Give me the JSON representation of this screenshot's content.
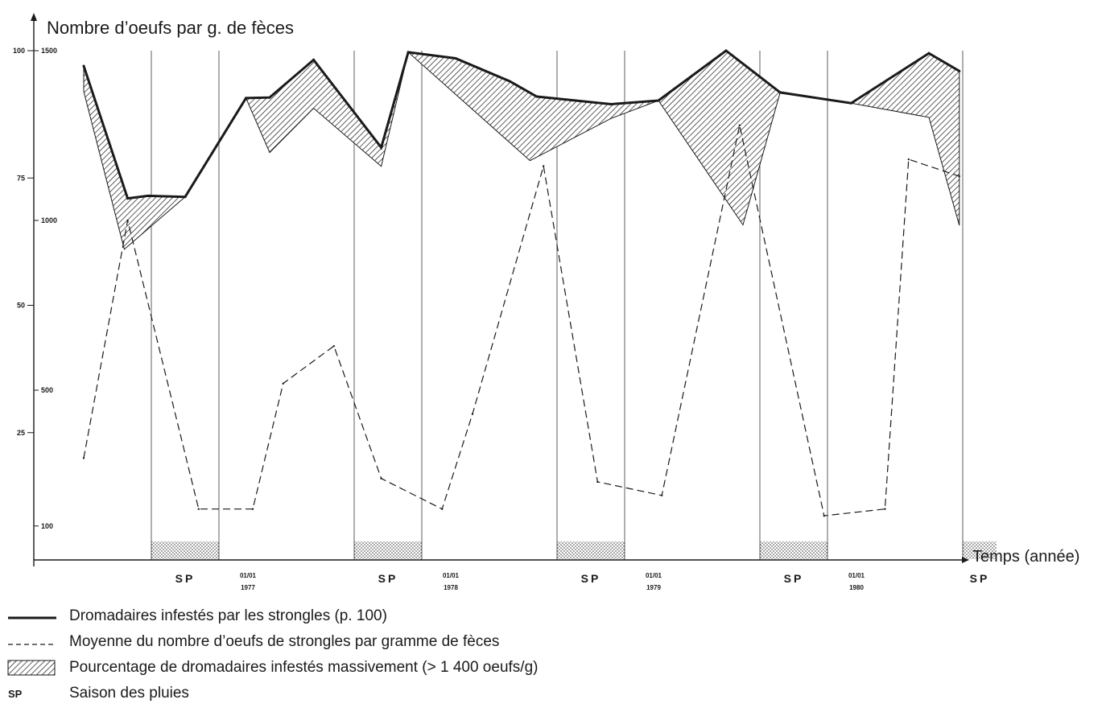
{
  "chart_data": {
    "type": "line",
    "title": "Nombre d’oeufs par g. de fèces",
    "xlabel": "Temps (année)",
    "left_axis": {
      "ticks": [
        100,
        75,
        50,
        25
      ],
      "range": [
        0,
        100
      ]
    },
    "right_axis": {
      "ticks": [
        1500,
        1000,
        500,
        100
      ],
      "range": [
        0,
        1500
      ]
    },
    "x": [
      0.7,
      1.4,
      1.8,
      2.1,
      2.4,
      2.7,
      3.15,
      3.3,
      3.8,
      4.3,
      4.6,
      5.3,
      5.5,
      6.0,
      6.6,
      6.8,
      7.3,
      7.8,
      8.3,
      8.5,
      9.1,
      9.7,
      10.6,
      11.1,
      11.6,
      12.4,
      12.7
    ],
    "series": [
      {
        "name": "Dromadaires infestés par les strongles (p. 100)",
        "style": "solid-thick",
        "x": [
          0,
          0.65,
          0.95,
          1.5,
          2.4,
          2.75,
          3.4,
          4.4,
          4.8,
          5.5,
          6.3,
          6.7,
          7.8,
          8.5,
          9.5,
          10.3,
          11.35,
          12.5,
          12.95
        ],
        "y": [
          97,
          71,
          71.5,
          71.3,
          90.7,
          90.8,
          98.2,
          81,
          99.7,
          98.5,
          94,
          91,
          89.5,
          90.2,
          100,
          91.8,
          89.7,
          99.5,
          96
        ]
      },
      {
        "name": "Moyenne du nombre d’oeufs de strongles par gramme de fèces",
        "style": "dashed",
        "x": [
          0,
          0.65,
          1.7,
          2.5,
          2.95,
          3.7,
          4.4,
          5.3,
          5.75,
          6.8,
          7.6,
          8.55,
          9.7,
          10.95,
          11.85,
          12.2,
          12.95
        ],
        "y": [
          300,
          1000,
          150,
          150,
          520,
          630,
          240,
          150,
          430,
          1160,
          230,
          190,
          1280,
          130,
          150,
          1180,
          1130
        ]
      }
    ],
    "heavy_infestation": {
      "name": "Pourcentage de dromadaires infestés massivement (> 1 400 oeufs/g)",
      "polygons": [
        {
          "upper": [
            [
              0,
              97
            ],
            [
              0.65,
              71
            ],
            [
              0.95,
              71.5
            ],
            [
              1.5,
              71.3
            ]
          ],
          "lower": [
            [
              0,
              92
            ],
            [
              0.6,
              61
            ],
            [
              1.5,
              71.3
            ]
          ]
        },
        {
          "upper": [
            [
              2.4,
              90.7
            ],
            [
              2.75,
              90.8
            ],
            [
              3.4,
              98.2
            ],
            [
              4.4,
              81
            ],
            [
              4.8,
              99.7
            ]
          ],
          "lower": [
            [
              2.4,
              90.7
            ],
            [
              2.75,
              80
            ],
            [
              3.4,
              88.7
            ],
            [
              4.4,
              77.3
            ],
            [
              4.8,
              99.7
            ]
          ]
        },
        {
          "upper": [
            [
              4.8,
              99.7
            ],
            [
              5.5,
              98.5
            ],
            [
              6.3,
              94
            ],
            [
              6.7,
              91
            ],
            [
              7.8,
              89.5
            ],
            [
              8.5,
              90.2
            ]
          ],
          "lower": [
            [
              4.8,
              99.7
            ],
            [
              6.6,
              78.4
            ],
            [
              7.8,
              86.7
            ],
            [
              8.5,
              90.2
            ]
          ]
        },
        {
          "upper": [
            [
              8.5,
              90.2
            ],
            [
              9.5,
              100
            ],
            [
              10.3,
              91.8
            ]
          ],
          "lower": [
            [
              8.5,
              90.2
            ],
            [
              9.75,
              65.8
            ],
            [
              10.3,
              91.8
            ]
          ]
        },
        {
          "upper": [
            [
              11.35,
              89.7
            ],
            [
              12.5,
              99.5
            ],
            [
              12.95,
              96
            ]
          ],
          "lower": [
            [
              11.35,
              89.7
            ],
            [
              12.5,
              86.9
            ],
            [
              12.95,
              65.7
            ]
          ]
        }
      ]
    },
    "rainy_seasons": {
      "label": "SP",
      "spans": [
        [
          1,
          2
        ],
        [
          4,
          5
        ],
        [
          7,
          8
        ],
        [
          10,
          11
        ],
        [
          13,
          13.5
        ]
      ]
    },
    "year_markers": [
      {
        "x": 2,
        "day": "01/01",
        "year": "1977"
      },
      {
        "x": 5,
        "day": "01/01",
        "year": "1978"
      },
      {
        "x": 8,
        "day": "01/01",
        "year": "1979"
      },
      {
        "x": 11,
        "day": "01/01",
        "year": "1980"
      }
    ],
    "legend_placement": "bottom-left",
    "grid": false,
    "colors": {
      "ink": "#1a1a1a",
      "paper": "#ffffff"
    }
  },
  "legend": {
    "items": [
      {
        "key": "solid",
        "label": "Dromadaires infestés par les strongles (p. 100)"
      },
      {
        "key": "dashed",
        "label": "Moyenne du nombre d’oeufs de strongles par gramme de fèces"
      },
      {
        "key": "hatch",
        "label": "Pourcentage de dromadaires infestés massivement (> 1 400 oeufs/g)"
      },
      {
        "key": "SP",
        "label": "Saison des pluies"
      }
    ]
  }
}
